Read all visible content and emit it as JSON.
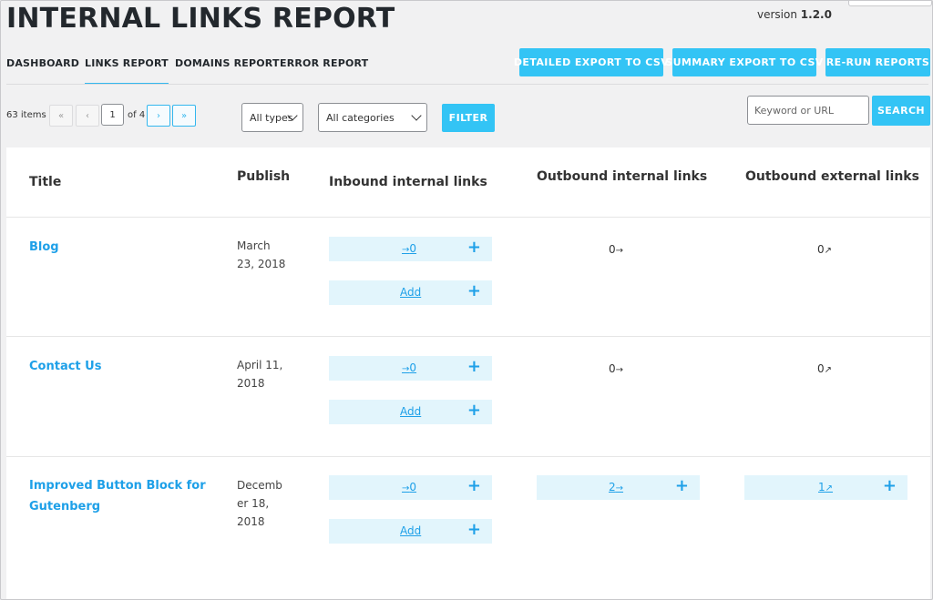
{
  "header": {
    "title": "INTERNAL LINKS REPORT",
    "version_label": "version",
    "version_number": "1.2.0"
  },
  "tabs": [
    {
      "label": "DASHBOARD"
    },
    {
      "label": "LINKS REPORT",
      "active": true
    },
    {
      "label": "DOMAINS REPORT"
    },
    {
      "label": "ERROR REPORT"
    }
  ],
  "actions": {
    "detailed_export": "DETAILED EXPORT TO CSV",
    "summary_export": "SUMMARY EXPORT TO CSV",
    "rerun": "RE-RUN REPORTS"
  },
  "pagination": {
    "items_count": "63 items",
    "first": "«",
    "prev": "‹",
    "current_page": "1",
    "of_pages": "of 4",
    "next": "›",
    "last": "»"
  },
  "filters": {
    "type_select": "All types",
    "category_select": "All categories",
    "filter_button": "FILTER"
  },
  "search": {
    "placeholder": "Keyword or URL",
    "button": "SEARCH"
  },
  "table": {
    "columns": [
      "Title",
      "Publish",
      "Inbound internal links",
      "Outbound internal links",
      "Outbound external links"
    ],
    "add_label": "Add",
    "rows": [
      {
        "title": "Blog",
        "publish_line1": "March",
        "publish_line2": "23, 2018",
        "publish_line3": "",
        "inbound": "0",
        "outbound_internal": "0",
        "outbound_external": "0"
      },
      {
        "title": "Contact Us",
        "publish_line1": "April 11,",
        "publish_line2": "2018",
        "publish_line3": "",
        "inbound": "0",
        "outbound_internal": "0",
        "outbound_external": "0"
      },
      {
        "title_line1": "Improved Button Block for",
        "title_line2": "Gutenberg",
        "publish_line1": "Decemb",
        "publish_line2": "er 18,",
        "publish_line3": "2018",
        "inbound": "0",
        "outbound_internal": "2",
        "outbound_external": "1"
      }
    ]
  },
  "icons": {
    "inbound_arrow": "→",
    "outbound_arrow": "→",
    "external_arrow": "↗",
    "plus": "+"
  },
  "colors": {
    "accent": "#33c4f5",
    "link": "#1ea0e8",
    "cell_bg": "#e2f5fc"
  }
}
